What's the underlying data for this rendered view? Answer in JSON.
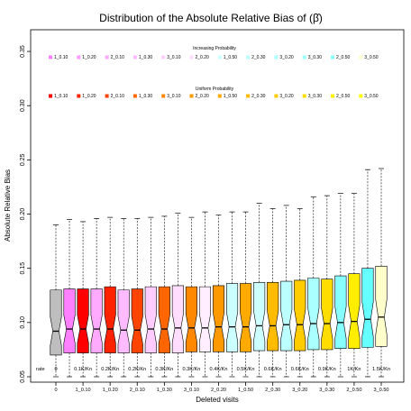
{
  "chart_data": {
    "type": "box",
    "title": "Distribution of the Absolute Relative Bias of (β̂)",
    "xlabel": "Deleted visits",
    "ylabel": "Absolute Relative Bias",
    "ylim": [
      0.045,
      0.37
    ],
    "yticks": [
      "0.05",
      "0.10",
      "0.15",
      "0.20",
      "0.25",
      "0.30",
      "0.35"
    ],
    "ytick_values": [
      0.05,
      0.1,
      0.15,
      0.2,
      0.25,
      0.3,
      0.35
    ],
    "x_tick_labels": [
      "0",
      "1_0.10",
      "1_0.20",
      "2_0.10",
      "1_0.30",
      "3_0.10",
      "2_0.20",
      "1_0.50",
      "2_0.30",
      "3_0.20",
      "3_0.30",
      "2_0.50",
      "3_0.50"
    ],
    "rate_label": "rate",
    "rate_labels": [
      "0",
      "0.1K/Kn",
      "0.2K/Kn",
      "0.2K/Kn",
      "0.3K/Kn",
      "0.3K/Kn",
      "0.4K/Kn",
      "0.5K/Kn",
      "0.6K/Kn",
      "0.6K/Kn",
      "0.9K/Kn",
      "1K/Kn",
      "1.5K/Kn"
    ],
    "legend_increasing": {
      "title": "Increasing Probability",
      "items": [
        "1_0.10",
        "1_0.20",
        "2_0.10",
        "1_0.30",
        "3_0.10",
        "2_0.20",
        "1_0.50",
        "2_0.30",
        "3_0.20",
        "3_0.30",
        "2_0.50",
        "3_0.50"
      ],
      "colors": [
        "#ff80ff",
        "#ff99ff",
        "#ffaaff",
        "#ffbbff",
        "#ffccff",
        "#ffddff",
        "#ccffff",
        "#bbffff",
        "#aaffff",
        "#99ffff",
        "#88ffff",
        "#ffffcc"
      ]
    },
    "legend_uniform": {
      "title": "Uniform Probability",
      "items": [
        "1_0.10",
        "1_0.20",
        "2_0.10",
        "1_0.30",
        "3_0.10",
        "2_0.20",
        "1_0.50",
        "2_0.30",
        "3_0.20",
        "3_0.30",
        "2_0.50",
        "3_0.50"
      ],
      "colors": [
        "#ff0000",
        "#ff2200",
        "#ff4400",
        "#ff6600",
        "#ff8800",
        "#ff9900",
        "#ffaa00",
        "#ffbb00",
        "#ffcc00",
        "#ffdd00",
        "#ffee00",
        "#ffff00"
      ]
    },
    "boxes": [
      {
        "fill": "#bebebe",
        "min": 0.05,
        "q1": 0.07,
        "median": 0.092,
        "q3": 0.13,
        "max": 0.19
      },
      {
        "fill": "#ff80ff",
        "min": 0.05,
        "q1": 0.072,
        "median": 0.094,
        "q3": 0.131,
        "max": 0.195
      },
      {
        "fill": "#ff0000",
        "min": 0.05,
        "q1": 0.072,
        "median": 0.094,
        "q3": 0.131,
        "max": 0.193
      },
      {
        "fill": "#ffaaff",
        "min": 0.05,
        "q1": 0.072,
        "median": 0.094,
        "q3": 0.131,
        "max": 0.196
      },
      {
        "fill": "#ff2200",
        "min": 0.05,
        "q1": 0.072,
        "median": 0.094,
        "q3": 0.133,
        "max": 0.197
      },
      {
        "fill": "#ffbbff",
        "min": 0.05,
        "q1": 0.072,
        "median": 0.093,
        "q3": 0.13,
        "max": 0.196
      },
      {
        "fill": "#ff4400",
        "min": 0.05,
        "q1": 0.072,
        "median": 0.093,
        "q3": 0.131,
        "max": 0.196
      },
      {
        "fill": "#ffccff",
        "min": 0.05,
        "q1": 0.072,
        "median": 0.094,
        "q3": 0.133,
        "max": 0.197
      },
      {
        "fill": "#ff6600",
        "min": 0.05,
        "q1": 0.072,
        "median": 0.094,
        "q3": 0.133,
        "max": 0.198
      },
      {
        "fill": "#ffddff",
        "min": 0.05,
        "q1": 0.072,
        "median": 0.095,
        "q3": 0.134,
        "max": 0.201
      },
      {
        "fill": "#ff8800",
        "min": 0.05,
        "q1": 0.073,
        "median": 0.095,
        "q3": 0.133,
        "max": 0.197
      },
      {
        "fill": "#ffeeff",
        "min": 0.05,
        "q1": 0.073,
        "median": 0.095,
        "q3": 0.133,
        "max": 0.202
      },
      {
        "fill": "#ff9900",
        "min": 0.05,
        "q1": 0.073,
        "median": 0.096,
        "q3": 0.134,
        "max": 0.199
      },
      {
        "fill": "#ccffff",
        "min": 0.05,
        "q1": 0.073,
        "median": 0.096,
        "q3": 0.136,
        "max": 0.202
      },
      {
        "fill": "#ffaa00",
        "min": 0.05,
        "q1": 0.073,
        "median": 0.096,
        "q3": 0.136,
        "max": 0.202
      },
      {
        "fill": "#ccffff",
        "min": 0.05,
        "q1": 0.074,
        "median": 0.097,
        "q3": 0.137,
        "max": 0.21
      },
      {
        "fill": "#ffbb00",
        "min": 0.05,
        "q1": 0.074,
        "median": 0.097,
        "q3": 0.137,
        "max": 0.205
      },
      {
        "fill": "#bbffff",
        "min": 0.05,
        "q1": 0.074,
        "median": 0.098,
        "q3": 0.138,
        "max": 0.208
      },
      {
        "fill": "#ffcc00",
        "min": 0.05,
        "q1": 0.074,
        "median": 0.098,
        "q3": 0.139,
        "max": 0.205
      },
      {
        "fill": "#aaffff",
        "min": 0.05,
        "q1": 0.075,
        "median": 0.099,
        "q3": 0.141,
        "max": 0.216
      },
      {
        "fill": "#ffdd00",
        "min": 0.05,
        "q1": 0.075,
        "median": 0.099,
        "q3": 0.14,
        "max": 0.217
      },
      {
        "fill": "#88ffff",
        "min": 0.05,
        "q1": 0.076,
        "median": 0.1,
        "q3": 0.143,
        "max": 0.219
      },
      {
        "fill": "#ffee00",
        "min": 0.05,
        "q1": 0.076,
        "median": 0.101,
        "q3": 0.145,
        "max": 0.219
      },
      {
        "fill": "#66ffff",
        "min": 0.05,
        "q1": 0.077,
        "median": 0.103,
        "q3": 0.15,
        "max": 0.241
      },
      {
        "fill": "#ffffcc",
        "min": 0.05,
        "q1": 0.078,
        "median": 0.105,
        "q3": 0.152,
        "max": 0.242
      }
    ]
  }
}
